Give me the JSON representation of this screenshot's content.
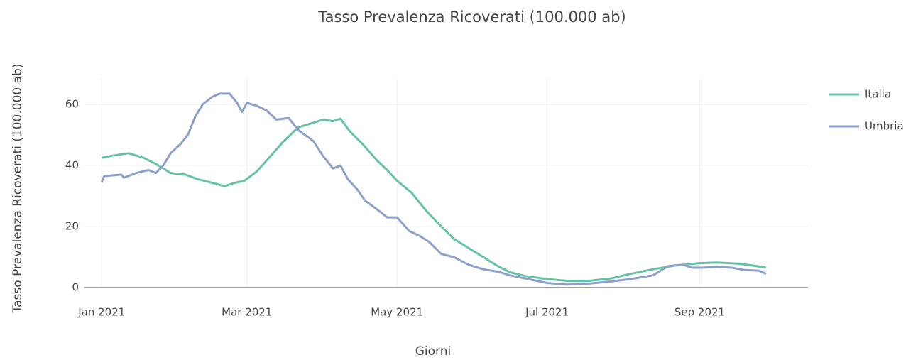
{
  "chart_data": {
    "type": "line",
    "title": "Tasso Prevalenza Ricoverati (100.000 ab)",
    "x_label": "Giorni",
    "y_label": "Tasso Prevalenza Ricoverati (100.000 ab)",
    "xlim": [
      -7,
      287
    ],
    "xticks": [
      {
        "value": 0,
        "label": "Jan 2021"
      },
      {
        "value": 59,
        "label": "Mar 2021"
      },
      {
        "value": 120,
        "label": "May 2021"
      },
      {
        "value": 181,
        "label": "Jul 2021"
      },
      {
        "value": 243,
        "label": "Sep 2021"
      }
    ],
    "ylim": [
      0,
      68.6
    ],
    "yticks": [
      0,
      20,
      40,
      60
    ],
    "grid": true,
    "legend": "right",
    "series": [
      {
        "name": "Italia",
        "color": "#66c2a5",
        "x": [
          0,
          5,
          11,
          17,
          22,
          28,
          34,
          39,
          45,
          50,
          54,
          58,
          63,
          68,
          74,
          80,
          86,
          90,
          94,
          97,
          101,
          106,
          112,
          116,
          120,
          126,
          132,
          138,
          143,
          149,
          155,
          161,
          166,
          172,
          181,
          189,
          198,
          207,
          215,
          224,
          233,
          243,
          250,
          259,
          264,
          270
        ],
        "values": [
          42.5,
          43.3,
          44,
          42.5,
          40.5,
          37.5,
          37,
          35.5,
          34.3,
          33.2,
          34.3,
          35,
          38,
          42.5,
          48,
          52.5,
          54,
          55,
          54.5,
          55.3,
          51,
          47,
          41.5,
          38.5,
          35,
          31,
          25,
          20,
          16,
          13,
          10,
          7,
          5,
          3.8,
          2.8,
          2.2,
          2.2,
          3,
          4.5,
          6,
          7.2,
          8,
          8.2,
          7.8,
          7.3,
          6.5
        ]
      },
      {
        "name": "Umbria",
        "color": "#8da0cb",
        "x": [
          0,
          1,
          8,
          9,
          14,
          19,
          22,
          25,
          28,
          32,
          35,
          38,
          41,
          45,
          48,
          52,
          55,
          57,
          59,
          63,
          67,
          71,
          76,
          80,
          86,
          90,
          94,
          97,
          100,
          104,
          107,
          112,
          116,
          120,
          125,
          129,
          133,
          138,
          143,
          149,
          155,
          161,
          166,
          172,
          181,
          189,
          198,
          207,
          215,
          224,
          230,
          236,
          240,
          244,
          250,
          256,
          261,
          267,
          270
        ],
        "values": [
          34.5,
          36.5,
          37,
          36,
          37.5,
          38.5,
          37.5,
          40,
          44,
          47,
          50,
          56,
          60,
          62.5,
          63.5,
          63.5,
          60.5,
          57.5,
          60.5,
          59.5,
          58,
          55,
          55.5,
          51.5,
          48,
          43,
          39,
          40,
          35.5,
          32,
          28.5,
          25.5,
          23,
          23,
          18.5,
          17,
          15,
          11,
          10,
          7.5,
          6,
          5.2,
          4,
          3,
          1.5,
          1,
          1.3,
          2,
          2.8,
          4,
          7,
          7.5,
          6.5,
          6.5,
          6.8,
          6.5,
          5.8,
          5.5,
          4.5
        ]
      }
    ]
  }
}
